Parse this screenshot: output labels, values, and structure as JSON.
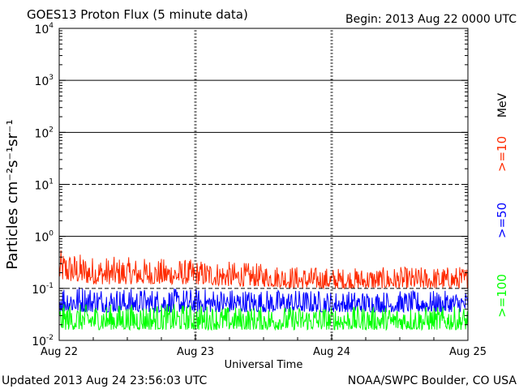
{
  "header": {
    "title": "GOES13 Proton Flux (5 minute data)",
    "begin": "Begin: 2013 Aug 22 0000 UTC"
  },
  "footer": {
    "updated": "Updated 2013 Aug 24 23:56:03 UTC",
    "credit": "NOAA/SWPC Boulder, CO USA"
  },
  "chart_data": {
    "type": "line",
    "title": "GOES13 Proton Flux (5 minute data)",
    "xlabel": "Universal Time",
    "ylabel": "Particles cm⁻²s⁻¹sr⁻¹",
    "yscale": "log",
    "ylim": [
      0.01,
      10000
    ],
    "xlim": [
      0,
      3
    ],
    "x_ticks": [
      "Aug 22",
      "Aug 23",
      "Aug 24",
      "Aug 25"
    ],
    "y_ticks": [
      {
        "base": "10",
        "exp": "4"
      },
      {
        "base": "10",
        "exp": "3"
      },
      {
        "base": "10",
        "exp": "2"
      },
      {
        "base": "10",
        "exp": "1"
      },
      {
        "base": "10",
        "exp": "0"
      },
      {
        "base": "10",
        "exp": "-1"
      },
      {
        "base": "10",
        "exp": "-2"
      }
    ],
    "reference_lines": [
      {
        "value": 1000,
        "style": "solid"
      },
      {
        "value": 100,
        "style": "solid"
      },
      {
        "value": 10,
        "style": "dashed"
      },
      {
        "value": 1,
        "style": "solid"
      },
      {
        "value": 0.1,
        "style": "dashed"
      }
    ],
    "energy_unit": "MeV",
    "series": [
      {
        "name": ">=10",
        "color": "#ff2a00",
        "x": [
          0,
          0.25,
          0.5,
          0.75,
          1,
          1.25,
          1.5,
          1.75,
          2,
          2.25,
          2.5,
          2.75,
          3
        ],
        "low": [
          0.14,
          0.12,
          0.12,
          0.12,
          0.12,
          0.11,
          0.11,
          0.1,
          0.1,
          0.1,
          0.1,
          0.1,
          0.1
        ],
        "high": [
          0.55,
          0.42,
          0.4,
          0.38,
          0.36,
          0.33,
          0.3,
          0.27,
          0.25,
          0.25,
          0.26,
          0.26,
          0.27
        ]
      },
      {
        "name": ">=50",
        "color": "#0000ff",
        "x": [
          0,
          0.25,
          0.5,
          0.75,
          1,
          1.25,
          1.5,
          1.75,
          2,
          2.25,
          2.5,
          2.75,
          3
        ],
        "low": [
          0.035,
          0.035,
          0.035,
          0.035,
          0.035,
          0.035,
          0.035,
          0.035,
          0.035,
          0.035,
          0.035,
          0.035,
          0.035
        ],
        "high": [
          0.13,
          0.11,
          0.1,
          0.1,
          0.1,
          0.1,
          0.095,
          0.095,
          0.09,
          0.09,
          0.09,
          0.09,
          0.09
        ]
      },
      {
        "name": ">=100",
        "color": "#00ff00",
        "x": [
          0,
          0.25,
          0.5,
          0.75,
          1,
          1.25,
          1.5,
          1.75,
          2,
          2.25,
          2.5,
          2.75,
          3
        ],
        "low": [
          0.016,
          0.016,
          0.016,
          0.016,
          0.016,
          0.016,
          0.016,
          0.016,
          0.016,
          0.016,
          0.016,
          0.016,
          0.016
        ],
        "high": [
          0.05,
          0.05,
          0.05,
          0.05,
          0.05,
          0.045,
          0.045,
          0.045,
          0.045,
          0.045,
          0.045,
          0.045,
          0.045
        ]
      }
    ]
  }
}
